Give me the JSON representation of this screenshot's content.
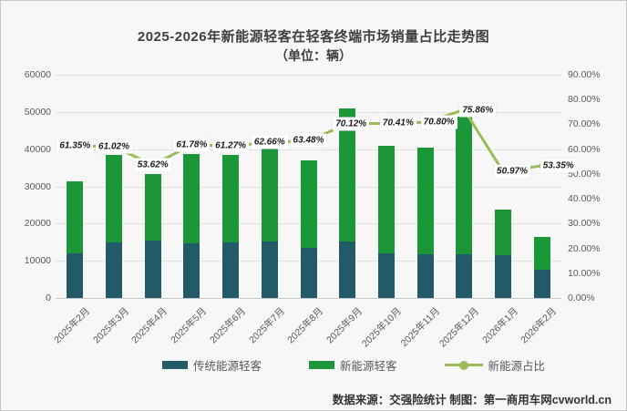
{
  "title": "2025-2026年新能源轻客在轻客终端市场销量占比走势图",
  "subtitle": "（单位：辆）",
  "footer": "数据来源：交强险统计 制图：第一商用车网cvworld.cn",
  "colors": {
    "traditional_bar": "#235A68",
    "nev_bar": "#1B9638",
    "share_line": "#9BBB59",
    "panel_bg": "#F7F7F7",
    "gridline": "#E2E2E2",
    "axis_text": "#595959",
    "title_text": "#3F3F3F"
  },
  "chart_data": {
    "type": "bar",
    "title": "2025-2026年新能源轻客在轻客终端市场销量占比走势图",
    "subtitle": "（单位：辆）",
    "categories": [
      "2025年2月",
      "2025年3月",
      "2025年4月",
      "2025年5月",
      "2025年6月",
      "2025年7月",
      "2025年8月",
      "2025年9月",
      "2025年10月",
      "2025年11月",
      "2025年12月",
      "2026年1月",
      "2026年2月"
    ],
    "series": [
      {
        "name": "传统能源轻客",
        "type": "bar",
        "stack": "total",
        "color": "#235A68",
        "values": [
          12100,
          15000,
          15500,
          14800,
          14900,
          15100,
          13500,
          15200,
          12100,
          11800,
          11800,
          11600,
          7600
        ]
      },
      {
        "name": "新能源轻客",
        "type": "bar",
        "stack": "total",
        "color": "#1B9638",
        "values": [
          19300,
          23400,
          17900,
          24000,
          23600,
          25400,
          23500,
          35700,
          28900,
          28700,
          37000,
          12100,
          8700
        ]
      },
      {
        "name": "新能源占比",
        "type": "line",
        "axis": "right",
        "color": "#9BBB59",
        "values": [
          61.35,
          61.02,
          53.62,
          61.78,
          61.27,
          62.66,
          63.48,
          70.12,
          70.41,
          70.8,
          75.86,
          50.97,
          53.35
        ],
        "labels": [
          "61.35%",
          "61.02%",
          "53.62%",
          "61.78%",
          "61.27%",
          "62.66%",
          "63.48%",
          "70.12%",
          "70.41%",
          "70.80%",
          "75.86%",
          "50.97%",
          "53.35%"
        ]
      }
    ],
    "left_axis": {
      "min": 0,
      "max": 60000,
      "step": 10000,
      "tick_labels": [
        "0",
        "10000",
        "20000",
        "30000",
        "40000",
        "50000",
        "60000"
      ]
    },
    "right_axis": {
      "min": 0,
      "max": 90,
      "step": 10,
      "tick_labels": [
        "0.00%",
        "10.00%",
        "20.00%",
        "30.00%",
        "40.00%",
        "50.00%",
        "60.00%",
        "70.00%",
        "80.00%",
        "90.00%"
      ]
    },
    "grid": true,
    "legend_position": "bottom"
  }
}
